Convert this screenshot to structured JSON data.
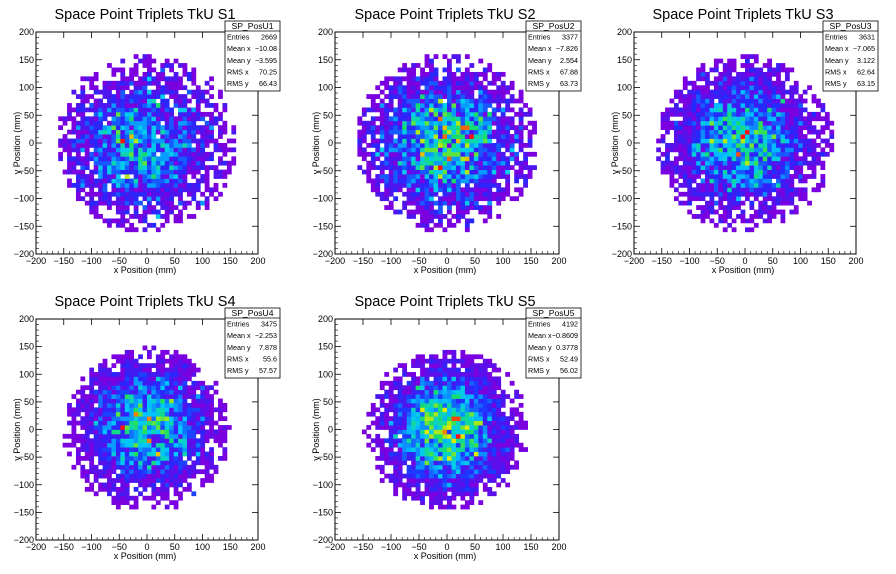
{
  "chart_data": [
    {
      "type": "heatmap",
      "title": "Space Point Triplets TkU S1",
      "xlabel": "x Position (mm)",
      "ylabel": "y Position (mm)",
      "xlim": [
        -200,
        200
      ],
      "ylim": [
        -200,
        200
      ],
      "xticks": [
        "−200",
        "−150",
        "−100",
        "−50",
        "0",
        "50",
        "100",
        "150",
        "200"
      ],
      "yticks": [
        "−200",
        "−150",
        "−100",
        "−50",
        "0",
        "50",
        "100",
        "150",
        "200"
      ],
      "stats": {
        "name": "SP_PosU1",
        "rows": [
          [
            "Entries",
            "2669"
          ],
          [
            "Mean x",
            "−10.08"
          ],
          [
            "Mean y",
            "−3.595"
          ],
          [
            "RMS x",
            "70.25"
          ],
          [
            "RMS y",
            "66.43"
          ]
        ]
      },
      "distribution": {
        "entries": 2669,
        "mean_x": -10.08,
        "mean_y": -3.595,
        "rms_x": 70.25,
        "rms_y": 66.43,
        "radius": 160,
        "bin_width": 8
      }
    },
    {
      "type": "heatmap",
      "title": "Space Point Triplets TkU S2",
      "xlabel": "x Position (mm)",
      "ylabel": "y Position (mm)",
      "xlim": [
        -200,
        200
      ],
      "ylim": [
        -200,
        200
      ],
      "xticks": [
        "−200",
        "−150",
        "−100",
        "−50",
        "0",
        "50",
        "100",
        "150",
        "200"
      ],
      "yticks": [
        "−200",
        "−150",
        "−100",
        "−50",
        "0",
        "50",
        "100",
        "150",
        "200"
      ],
      "stats": {
        "name": "SP_PosU2",
        "rows": [
          [
            "Entries",
            "3377"
          ],
          [
            "Mean x",
            "−7.826"
          ],
          [
            "Mean y",
            "2.554"
          ],
          [
            "RMS x",
            "67.88"
          ],
          [
            "RMS y",
            "63.73"
          ]
        ]
      },
      "distribution": {
        "entries": 3377,
        "mean_x": -7.826,
        "mean_y": 2.554,
        "rms_x": 67.88,
        "rms_y": 63.73,
        "radius": 160,
        "bin_width": 8
      }
    },
    {
      "type": "heatmap",
      "title": "Space Point Triplets TkU S3",
      "xlabel": "x Position (mm)",
      "ylabel": "y Position (mm)",
      "xlim": [
        -200,
        200
      ],
      "ylim": [
        -200,
        200
      ],
      "xticks": [
        "−200",
        "−150",
        "−100",
        "−50",
        "0",
        "50",
        "100",
        "150",
        "200"
      ],
      "yticks": [
        "−200",
        "−150",
        "−100",
        "−50",
        "0",
        "50",
        "100",
        "150",
        "200"
      ],
      "stats": {
        "name": "SP_PosU3",
        "rows": [
          [
            "Entries",
            "3631"
          ],
          [
            "Mean x",
            "−7.065"
          ],
          [
            "Mean y",
            "3.122"
          ],
          [
            "RMS x",
            "62.64"
          ],
          [
            "RMS y",
            "63.15"
          ]
        ]
      },
      "distribution": {
        "entries": 3631,
        "mean_x": -7.065,
        "mean_y": 3.122,
        "rms_x": 62.64,
        "rms_y": 63.15,
        "radius": 160,
        "bin_width": 8
      }
    },
    {
      "type": "heatmap",
      "title": "Space Point Triplets TkU S4",
      "xlabel": "x Position (mm)",
      "ylabel": "y Position (mm)",
      "xlim": [
        -200,
        200
      ],
      "ylim": [
        -200,
        200
      ],
      "xticks": [
        "−200",
        "−150",
        "−100",
        "−50",
        "0",
        "50",
        "100",
        "150",
        "200"
      ],
      "yticks": [
        "−200",
        "−150",
        "−100",
        "−50",
        "0",
        "50",
        "100",
        "150",
        "200"
      ],
      "stats": {
        "name": "SP_PosU4",
        "rows": [
          [
            "Entries",
            "3475"
          ],
          [
            "Mean x",
            "−2.253"
          ],
          [
            "Mean y",
            "7.878"
          ],
          [
            "RMS x",
            "55.6"
          ],
          [
            "RMS y",
            "57.57"
          ]
        ]
      },
      "distribution": {
        "entries": 3475,
        "mean_x": -2.253,
        "mean_y": 7.878,
        "rms_x": 55.6,
        "rms_y": 57.57,
        "radius": 150,
        "bin_width": 8
      }
    },
    {
      "type": "heatmap",
      "title": "Space Point Triplets TkU S5",
      "xlabel": "x Position (mm)",
      "ylabel": "y Position (mm)",
      "xlim": [
        -200,
        200
      ],
      "ylim": [
        -200,
        200
      ],
      "xticks": [
        "−200",
        "−150",
        "−100",
        "−50",
        "0",
        "50",
        "100",
        "150",
        "200"
      ],
      "yticks": [
        "−200",
        "−150",
        "−100",
        "−50",
        "0",
        "50",
        "100",
        "150",
        "200"
      ],
      "stats": {
        "name": "SP_PosU5",
        "rows": [
          [
            "Entries",
            "4192"
          ],
          [
            "Mean x",
            "−0.8609"
          ],
          [
            "Mean y",
            "0.3778"
          ],
          [
            "RMS x",
            "52.49"
          ],
          [
            "RMS y",
            "56.02"
          ]
        ]
      },
      "distribution": {
        "entries": 4192,
        "mean_x": -0.8609,
        "mean_y": 0.3778,
        "rms_x": 52.49,
        "rms_y": 56.02,
        "radius": 145,
        "bin_width": 8
      }
    }
  ],
  "colors": {
    "palette_low": "#7b00e0",
    "palette_mid_low": "#1f2cff",
    "palette_mid": "#00c8ff",
    "palette_high": "#18e060",
    "palette_peak": "#ff1010",
    "frame": "#000000",
    "background": "#ffffff"
  }
}
